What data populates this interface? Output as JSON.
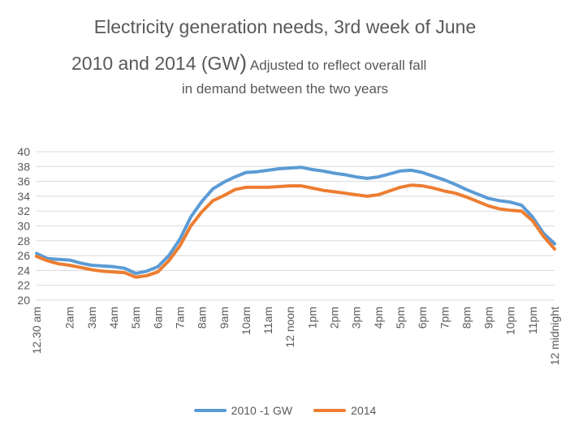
{
  "title": {
    "line1": "Electricity generation needs, 3rd week of June",
    "line2_main": "2010 and 2014 (GW",
    "line2_paren": ")",
    "line2_sub": " Adjusted to reflect overall fall",
    "line3": "in demand between the two years"
  },
  "colors": {
    "series_2010": "#5b9bd5",
    "series_2014": "#ed7d31",
    "grid": "#d9d9d9",
    "text": "#595959"
  },
  "chart_data": {
    "type": "line",
    "ylim": [
      20,
      40
    ],
    "yticks": [
      20,
      22,
      24,
      26,
      28,
      30,
      32,
      34,
      36,
      38,
      40
    ],
    "grid": true,
    "legend_position": "bottom",
    "xticklabels": [
      "12.30 am",
      "2am",
      "3am",
      "4am",
      "5am",
      "6am",
      "7am",
      "8am",
      "9am",
      "10am",
      "11am",
      "12 noon",
      "1pm",
      "2pm",
      "3pm",
      "4pm",
      "5pm",
      "6pm",
      "7pm",
      "8pm",
      "9pm",
      "10pm",
      "11pm",
      "12 midnight"
    ],
    "xtick_hours": [
      0.5,
      2,
      3,
      4,
      5,
      6,
      7,
      8,
      9,
      10,
      11,
      12,
      13,
      14,
      15,
      16,
      17,
      18,
      19,
      20,
      21,
      22,
      23,
      24
    ],
    "x": [
      0.5,
      1,
      1.5,
      2,
      2.5,
      3,
      3.5,
      4,
      4.5,
      5,
      5.5,
      6,
      6.5,
      7,
      7.5,
      8,
      8.5,
      9,
      9.5,
      10,
      10.5,
      11,
      11.5,
      12,
      12.5,
      13,
      13.5,
      14,
      14.5,
      15,
      15.5,
      16,
      16.5,
      17,
      17.5,
      18,
      18.5,
      19,
      19.5,
      20,
      20.5,
      21,
      21.5,
      22,
      22.5,
      23,
      23.5,
      24
    ],
    "series": [
      {
        "name": "2010 -1 GW",
        "values": [
          26.3,
          25.6,
          25.5,
          25.4,
          25.0,
          24.7,
          24.6,
          24.5,
          24.3,
          23.6,
          23.9,
          24.5,
          26.0,
          28.2,
          31.2,
          33.3,
          35.0,
          35.9,
          36.6,
          37.2,
          37.3,
          37.5,
          37.7,
          37.8,
          37.9,
          37.6,
          37.4,
          37.1,
          36.9,
          36.6,
          36.4,
          36.6,
          37.0,
          37.4,
          37.5,
          37.2,
          36.7,
          36.2,
          35.6,
          34.9,
          34.3,
          33.7,
          33.4,
          33.2,
          32.8,
          31.2,
          29.0,
          27.6
        ]
      },
      {
        "name": "2014",
        "values": [
          25.9,
          25.3,
          24.9,
          24.7,
          24.4,
          24.1,
          23.9,
          23.8,
          23.7,
          23.1,
          23.3,
          23.8,
          25.3,
          27.3,
          30.0,
          31.9,
          33.4,
          34.1,
          34.9,
          35.2,
          35.2,
          35.2,
          35.3,
          35.4,
          35.4,
          35.1,
          34.8,
          34.6,
          34.4,
          34.2,
          34.0,
          34.2,
          34.7,
          35.2,
          35.5,
          35.4,
          35.1,
          34.7,
          34.4,
          33.9,
          33.3,
          32.7,
          32.3,
          32.1,
          32.0,
          30.7,
          28.6,
          26.9
        ]
      }
    ]
  }
}
